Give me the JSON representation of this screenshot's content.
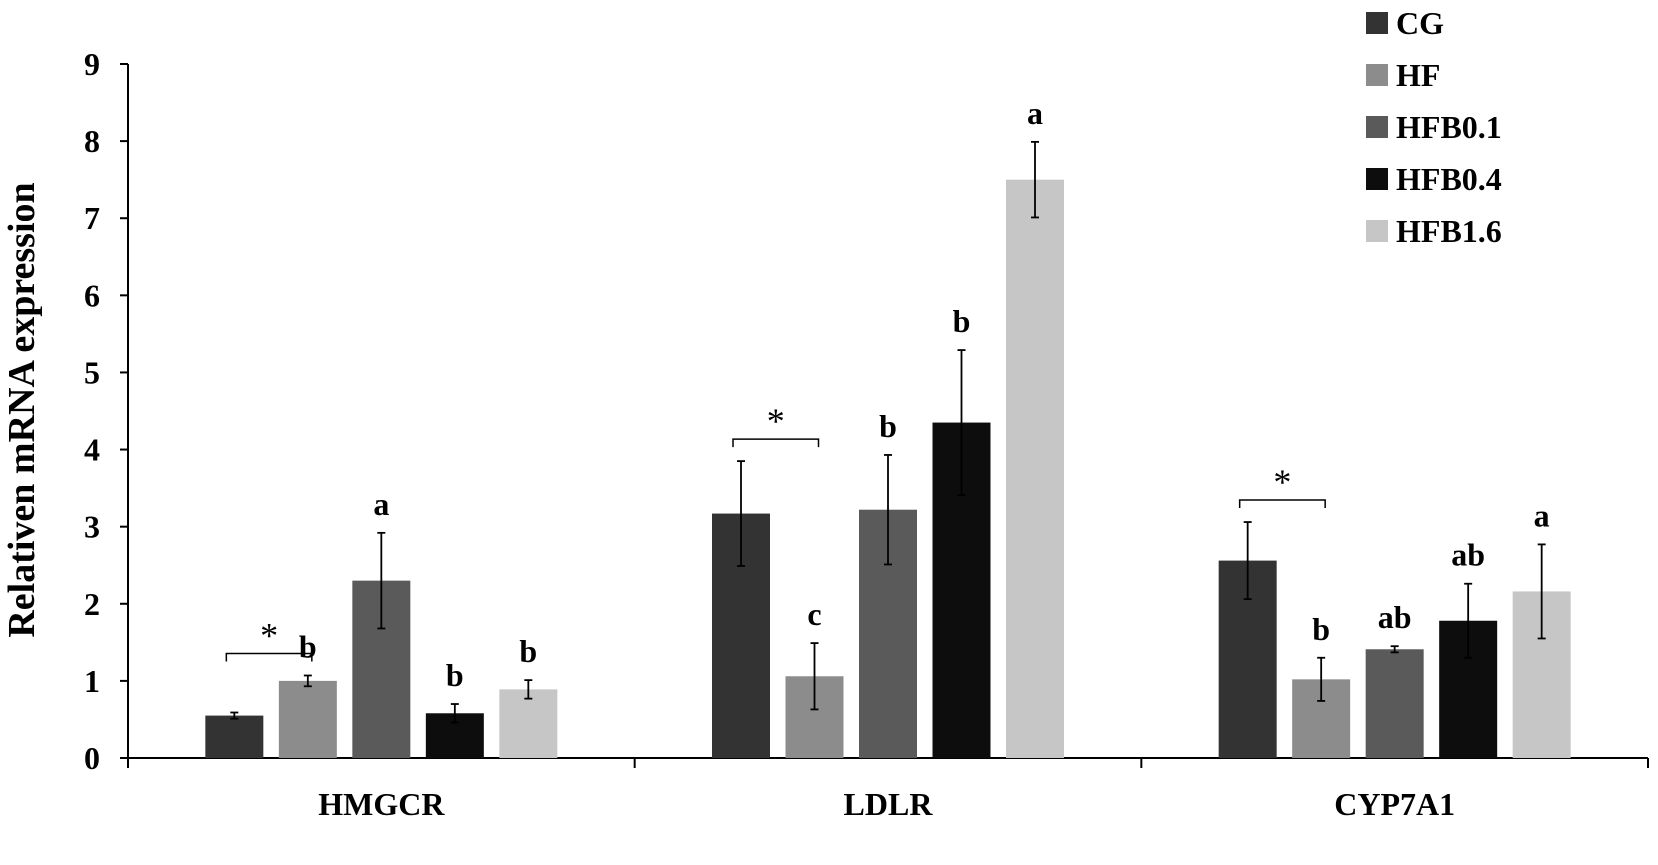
{
  "chart_data": {
    "type": "bar",
    "title": "",
    "xlabel": "",
    "ylabel": "Relativen mRNA expression",
    "ylim": [
      0,
      9
    ],
    "yticks": [
      0,
      1,
      2,
      3,
      4,
      5,
      6,
      7,
      8,
      9
    ],
    "categories": [
      "HMGCR",
      "LDLR",
      "CYP7A1"
    ],
    "legend_position": "top-right",
    "grid": false,
    "series": [
      {
        "name": "CG",
        "color": "#333333",
        "values": [
          0.55,
          3.17,
          2.56
        ],
        "errors": [
          0.04,
          0.68,
          0.5
        ],
        "labels": [
          "",
          "",
          ""
        ]
      },
      {
        "name": "HF",
        "color": "#8c8c8c",
        "values": [
          1.0,
          1.06,
          1.02
        ],
        "errors": [
          0.07,
          0.43,
          0.28
        ],
        "labels": [
          "b",
          "c",
          "b"
        ]
      },
      {
        "name": "HFB0.1",
        "color": "#5a5a5a",
        "values": [
          2.3,
          3.22,
          1.41
        ],
        "errors": [
          0.62,
          0.71,
          0.04
        ],
        "labels": [
          "a",
          "b",
          "ab"
        ]
      },
      {
        "name": "HFB0.4",
        "color": "#0d0d0d",
        "values": [
          0.58,
          4.35,
          1.78
        ],
        "errors": [
          0.12,
          0.94,
          0.48
        ],
        "labels": [
          "b",
          "b",
          "ab"
        ]
      },
      {
        "name": "HFB1.6",
        "color": "#c6c6c6",
        "values": [
          0.89,
          7.5,
          2.16
        ],
        "errors": [
          0.12,
          0.49,
          0.61
        ],
        "labels": [
          "b",
          "a",
          "a"
        ]
      }
    ],
    "comparison_marker": {
      "text": "*",
      "between": [
        "CG",
        "HF"
      ],
      "groups": [
        0,
        1,
        2
      ]
    }
  }
}
